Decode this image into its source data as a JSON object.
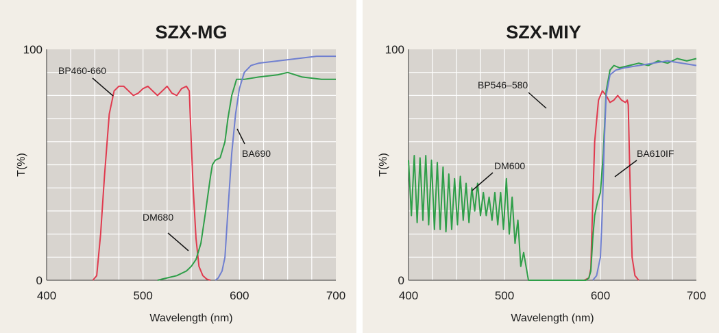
{
  "chart_data": [
    {
      "type": "line",
      "title": "SZX-MG",
      "xlabel": "Wavelength (nm)",
      "ylabel": "T(%)",
      "xlim": [
        400,
        700
      ],
      "ylim": [
        0,
        100
      ],
      "x_ticks": [
        "400",
        "500",
        "600",
        "700"
      ],
      "y_ticks": [
        "0",
        "100"
      ],
      "grid": true,
      "colors": {
        "plot_bg": "#d8d4cf",
        "grid": "#ffffff",
        "panel_bg": "#f2eee7"
      },
      "series": [
        {
          "name": "BP460–660",
          "color": "#e03a4e",
          "x": [
            448,
            452,
            456,
            460,
            465,
            470,
            475,
            480,
            485,
            490,
            495,
            500,
            505,
            510,
            515,
            520,
            525,
            530,
            535,
            540,
            545,
            548,
            550,
            552,
            555,
            558,
            562,
            566,
            570
          ],
          "y": [
            0,
            2,
            20,
            45,
            72,
            82,
            84,
            84,
            82,
            80,
            81,
            83,
            84,
            82,
            80,
            82,
            84,
            81,
            80,
            83,
            84,
            82,
            60,
            40,
            18,
            6,
            2,
            0.5,
            0
          ]
        },
        {
          "name": "DM680",
          "color": "#2e9e48",
          "x": [
            515,
            525,
            535,
            545,
            550,
            555,
            560,
            565,
            570,
            572,
            575,
            580,
            585,
            588,
            592,
            597,
            605,
            620,
            640,
            650,
            665,
            685,
            700
          ],
          "y": [
            0,
            1,
            2,
            4,
            6,
            9,
            16,
            30,
            45,
            50,
            52,
            53,
            60,
            70,
            80,
            87,
            87,
            88,
            89,
            90,
            88,
            87,
            87
          ]
        },
        {
          "name": "BA690",
          "color": "#6f7fd0",
          "x": [
            575,
            578,
            582,
            585,
            588,
            592,
            596,
            600,
            605,
            612,
            620,
            640,
            660,
            680,
            700
          ],
          "y": [
            0,
            1,
            4,
            10,
            30,
            55,
            72,
            83,
            90,
            93,
            94,
            95,
            96,
            97,
            97
          ]
        }
      ],
      "annotations": [
        "BP460-660",
        "DM680",
        "BA690"
      ]
    },
    {
      "type": "line",
      "title": "SZX-MIY",
      "xlabel": "Wavelength (nm)",
      "ylabel": "T(%)",
      "xlim": [
        400,
        700
      ],
      "ylim": [
        0,
        100
      ],
      "x_ticks": [
        "400",
        "500",
        "600",
        "700"
      ],
      "y_ticks": [
        "0",
        "100"
      ],
      "grid": true,
      "colors": {
        "plot_bg": "#d8d4cf",
        "grid": "#ffffff",
        "panel_bg": "#f2eee7"
      },
      "series": [
        {
          "name": "BP546–580",
          "color": "#e03a4e",
          "x": [
            583,
            588,
            590,
            591,
            594,
            598,
            602,
            606,
            610,
            614,
            618,
            622,
            626,
            628,
            629,
            631,
            633,
            636,
            640
          ],
          "y": [
            0,
            1,
            5,
            20,
            60,
            78,
            82,
            80,
            77,
            78,
            80,
            78,
            77,
            78,
            76,
            40,
            10,
            2,
            0
          ]
        },
        {
          "name": "DM600",
          "color": "#2e9e48",
          "x": [
            400,
            403,
            406,
            409,
            412,
            415,
            418,
            421,
            424,
            427,
            430,
            433,
            436,
            439,
            442,
            445,
            448,
            451,
            454,
            457,
            460,
            463,
            466,
            469,
            472,
            475,
            478,
            481,
            484,
            487,
            490,
            493,
            496,
            499,
            502,
            505,
            508,
            511,
            514,
            517,
            520,
            525,
            540,
            560,
            575,
            582,
            585,
            588,
            590,
            592,
            594,
            597,
            600,
            603,
            606,
            610,
            614,
            620,
            630,
            640,
            650,
            660,
            670,
            680,
            690,
            700
          ],
          "y": [
            52,
            28,
            54,
            25,
            53,
            26,
            54,
            24,
            52,
            22,
            51,
            22,
            49,
            21,
            46,
            22,
            44,
            24,
            45,
            26,
            42,
            25,
            40,
            30,
            42,
            28,
            38,
            28,
            36,
            26,
            38,
            24,
            38,
            22,
            44,
            20,
            36,
            16,
            26,
            6,
            12,
            0,
            0,
            0,
            0,
            0,
            0,
            1,
            4,
            18,
            28,
            34,
            38,
            55,
            82,
            91,
            93,
            92,
            93,
            94,
            93,
            95,
            94,
            96,
            95,
            96
          ]
        },
        {
          "name": "BA610IF",
          "color": "#6f7fd0",
          "x": [
            592,
            596,
            600,
            602,
            604,
            606,
            610,
            616,
            625,
            640,
            655,
            670,
            685,
            700
          ],
          "y": [
            0,
            2,
            10,
            30,
            60,
            80,
            89,
            91,
            92,
            93,
            94,
            95,
            94,
            93
          ]
        }
      ],
      "annotations": [
        "BP546–580",
        "DM600",
        "BA610IF"
      ]
    }
  ]
}
